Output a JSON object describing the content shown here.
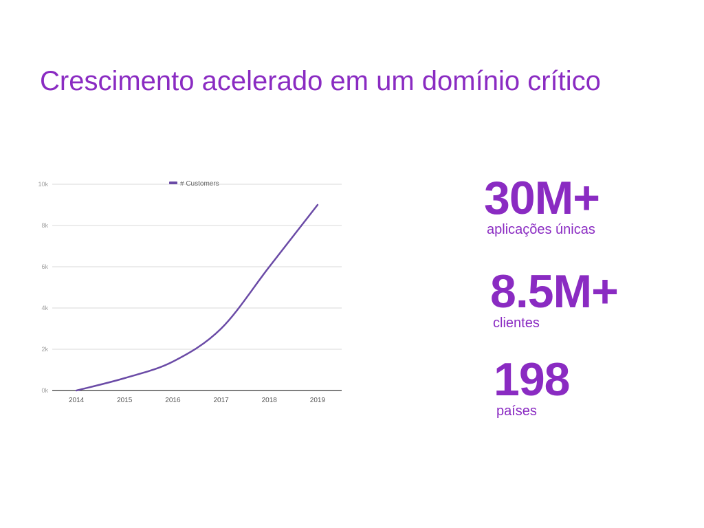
{
  "slide": {
    "title": "Crescimento acelerado em um domínio crítico"
  },
  "stats": [
    {
      "value": "30M+",
      "label": "aplicações únicas"
    },
    {
      "value": "8.5M+",
      "label": "clientes"
    },
    {
      "value": "198",
      "label": "países"
    }
  ],
  "colors": {
    "accent": "#8a2bc2",
    "series": "#6a4aa6",
    "grid": "#d9d9d9",
    "tick": "#9e9e9e"
  },
  "chart_data": {
    "type": "line",
    "title": "",
    "xlabel": "",
    "ylabel": "",
    "categories": [
      "2014",
      "2015",
      "2016",
      "2017",
      "2018",
      "2019"
    ],
    "y_ticks": [
      0,
      2000,
      4000,
      6000,
      8000,
      10000
    ],
    "y_tick_labels": [
      "0k",
      "2k",
      "4k",
      "6k",
      "8k",
      "10k"
    ],
    "ylim": [
      0,
      10000
    ],
    "legend": "top-center",
    "grid": true,
    "series": [
      {
        "name": "# Customers",
        "values": [
          0,
          600,
          1400,
          3000,
          6000,
          9000
        ]
      }
    ]
  }
}
